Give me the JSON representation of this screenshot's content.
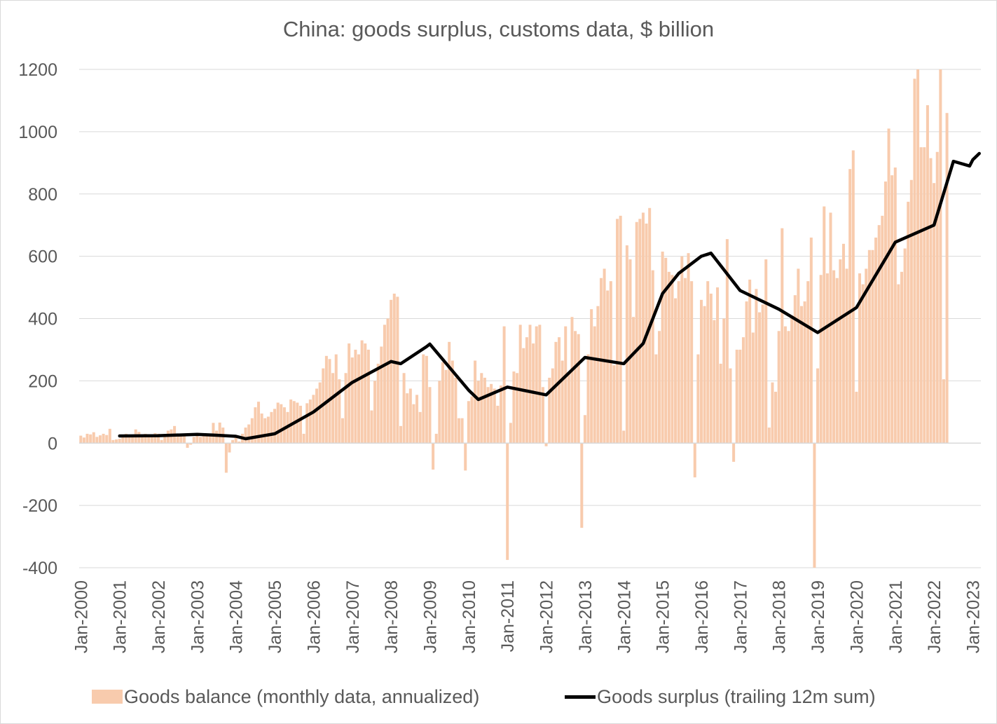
{
  "chart_data": {
    "type": "bar",
    "title": "China: goods surplus, customs data, $ billion",
    "xlabel": "",
    "ylabel": "",
    "ylim": [
      -400,
      1200
    ],
    "yticks": [
      -400,
      -200,
      0,
      200,
      400,
      600,
      800,
      1000,
      1200
    ],
    "grid": "horizontal",
    "legend_position": "bottom",
    "x_ticks": [
      "Jan-2000",
      "Jan-2001",
      "Jan-2002",
      "Jan-2003",
      "Jan-2004",
      "Jan-2005",
      "Jan-2006",
      "Jan-2007",
      "Jan-2008",
      "Jan-2009",
      "Jan-2010",
      "Jan-2011",
      "Jan-2012",
      "Jan-2013",
      "Jan-2014",
      "Jan-2015",
      "Jan-2016",
      "Jan-2017",
      "Jan-2018",
      "Jan-2019",
      "Jan-2020",
      "Jan-2021",
      "Jan-2022",
      "Jan-2023"
    ],
    "x_start": "Jan-2000",
    "x_end": "Mar-2023",
    "series": [
      {
        "name": "Goods balance (monthly data, annualized)",
        "type": "bar",
        "color": "#f8cbad",
        "values": [
          24,
          18,
          30,
          28,
          35,
          20,
          25,
          30,
          26,
          46,
          10,
          12,
          14,
          20,
          30,
          22,
          24,
          44,
          36,
          25,
          30,
          28,
          26,
          32,
          30,
          10,
          20,
          40,
          44,
          55,
          25,
          30,
          25,
          -15,
          -5,
          20,
          30,
          20,
          25,
          30,
          22,
          65,
          40,
          66,
          50,
          -95,
          -30,
          10,
          20,
          5,
          30,
          50,
          60,
          80,
          115,
          133,
          95,
          80,
          85,
          100,
          110,
          130,
          125,
          115,
          100,
          140,
          135,
          130,
          120,
          30,
          128,
          140,
          155,
          175,
          195,
          240,
          280,
          270,
          225,
          285,
          205,
          80,
          225,
          320,
          275,
          300,
          285,
          330,
          320,
          300,
          105,
          200,
          255,
          310,
          380,
          400,
          460,
          480,
          470,
          55,
          225,
          160,
          175,
          125,
          155,
          100,
          285,
          280,
          180,
          -85,
          30,
          200,
          260,
          235,
          325,
          265,
          210,
          80,
          80,
          -88,
          135,
          150,
          265,
          200,
          225,
          210,
          180,
          190,
          175,
          120,
          185,
          375,
          -375,
          65,
          230,
          225,
          380,
          305,
          340,
          380,
          320,
          375,
          380,
          180,
          -10,
          210,
          240,
          325,
          340,
          265,
          375,
          225,
          405,
          360,
          350,
          -272,
          90,
          285,
          430,
          375,
          440,
          530,
          560,
          490,
          520,
          250,
          720,
          730,
          40,
          635,
          590,
          405,
          710,
          720,
          740,
          705,
          755,
          555,
          285,
          360,
          615,
          595,
          550,
          540,
          465,
          520,
          600,
          530,
          610,
          520,
          -110,
          285,
          460,
          440,
          520,
          480,
          395,
          500,
          255,
          400,
          655,
          240,
          -60,
          300,
          300,
          340,
          455,
          525,
          355,
          495,
          420,
          445,
          590,
          50,
          195,
          165,
          360,
          690,
          375,
          360,
          410,
          475,
          560,
          440,
          455,
          520,
          660,
          -400,
          240,
          540,
          760,
          545,
          740,
          555,
          530,
          590,
          640,
          560,
          880,
          940,
          165,
          545,
          510,
          560,
          620,
          620,
          660,
          700,
          730,
          840,
          1010,
          860,
          885,
          510,
          550,
          625,
          775,
          845,
          1170,
          1200,
          950,
          950,
          1085,
          915,
          835,
          935,
          1200,
          205,
          1060
        ]
      },
      {
        "name": "Goods surplus (trailing 12m sum)",
        "type": "line",
        "color": "#000000",
        "points": [
          [
            "Jan-2001",
            23
          ],
          [
            "Jan-2002",
            24
          ],
          [
            "Jan-2003",
            28
          ],
          [
            "Jun-2003",
            26
          ],
          [
            "Jan-2004",
            22
          ],
          [
            "Apr-2004",
            14
          ],
          [
            "Jan-2005",
            30
          ],
          [
            "Jan-2006",
            100
          ],
          [
            "Jan-2007",
            195
          ],
          [
            "Jan-2008",
            262
          ],
          [
            "Apr-2008",
            255
          ],
          [
            "Dec-2008",
            310
          ],
          [
            "Jan-2009",
            318
          ],
          [
            "Jan-2010",
            170
          ],
          [
            "Apr-2010",
            140
          ],
          [
            "Jan-2011",
            180
          ],
          [
            "Jan-2012",
            155
          ],
          [
            "Jan-2013",
            275
          ],
          [
            "Jan-2014",
            255
          ],
          [
            "Jul-2014",
            320
          ],
          [
            "Jan-2015",
            480
          ],
          [
            "Jun-2015",
            545
          ],
          [
            "Jan-2016",
            600
          ],
          [
            "Apr-2016",
            610
          ],
          [
            "Jan-2017",
            490
          ],
          [
            "Jan-2018",
            430
          ],
          [
            "Jan-2019",
            355
          ],
          [
            "Jan-2020",
            435
          ],
          [
            "Jan-2021",
            645
          ],
          [
            "Jan-2022",
            700
          ],
          [
            "Jul-2022",
            905
          ],
          [
            "Dec-2022",
            890
          ],
          [
            "Jan-2023",
            910
          ],
          [
            "Mar-2023",
            930
          ]
        ]
      }
    ]
  }
}
